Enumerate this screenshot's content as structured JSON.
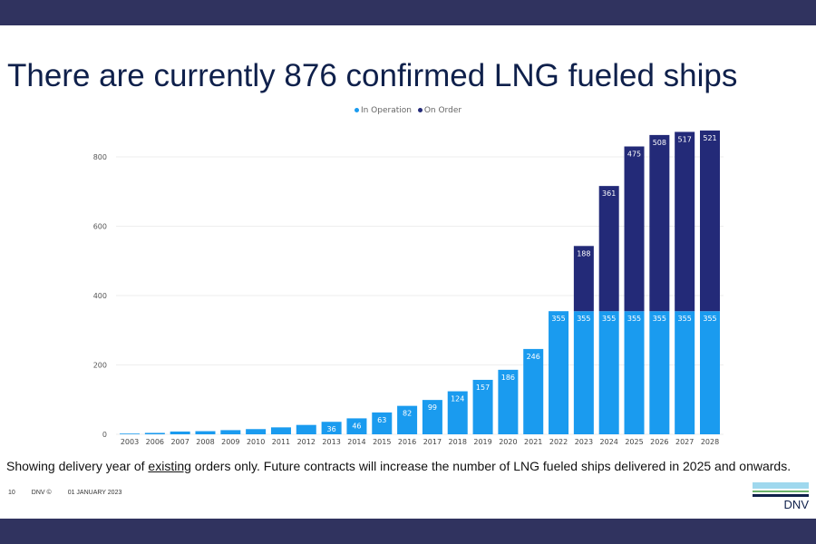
{
  "title": "There are currently 876 confirmed LNG fueled ships",
  "note": {
    "pre": "Showing delivery year of ",
    "underlined": "existing",
    "post": " orders only. Future contracts will increase the number of LNG fueled ships delivered in 2025 and onwards."
  },
  "footer": {
    "page": "10",
    "company": "DNV ©",
    "date": "01 JANUARY 2023"
  },
  "logo": {
    "text": "DNV"
  },
  "chart_data": {
    "type": "bar",
    "stacked": true,
    "title": "",
    "xlabel": "",
    "ylabel": "",
    "ylim": [
      0,
      900
    ],
    "yticks": [
      0,
      200,
      400,
      600,
      800
    ],
    "grid": true,
    "legend": "top",
    "categories": [
      "2003",
      "2006",
      "2007",
      "2008",
      "2009",
      "2010",
      "2011",
      "2012",
      "2013",
      "2014",
      "2015",
      "2016",
      "2017",
      "2018",
      "2019",
      "2020",
      "2021",
      "2022",
      "2023",
      "2024",
      "2025",
      "2026",
      "2027",
      "2028"
    ],
    "series": [
      {
        "name": "In Operation",
        "color": "#1a9bef",
        "values": [
          2,
          4,
          8,
          9,
          12,
          15,
          20,
          27,
          36,
          46,
          63,
          82,
          99,
          124,
          157,
          186,
          246,
          355,
          355,
          355,
          355,
          355,
          355,
          355
        ]
      },
      {
        "name": "On Order",
        "color": "#232a78",
        "values": [
          0,
          0,
          0,
          0,
          0,
          0,
          0,
          0,
          0,
          0,
          0,
          0,
          0,
          0,
          0,
          0,
          0,
          0,
          188,
          361,
          475,
          508,
          517,
          521
        ]
      }
    ],
    "data_labels_in_operation": [
      "",
      "",
      "",
      "",
      "",
      "",
      "",
      "",
      "36",
      "46",
      "63",
      "82",
      "99",
      "124",
      "157",
      "186",
      "246",
      "355",
      "355",
      "355",
      "355",
      "355",
      "355",
      "355"
    ],
    "data_labels_on_order": [
      "",
      "",
      "",
      "",
      "",
      "",
      "",
      "",
      "",
      "",
      "",
      "",
      "",
      "",
      "",
      "",
      "",
      "",
      "188",
      "361",
      "475",
      "508",
      "517",
      "521"
    ]
  }
}
